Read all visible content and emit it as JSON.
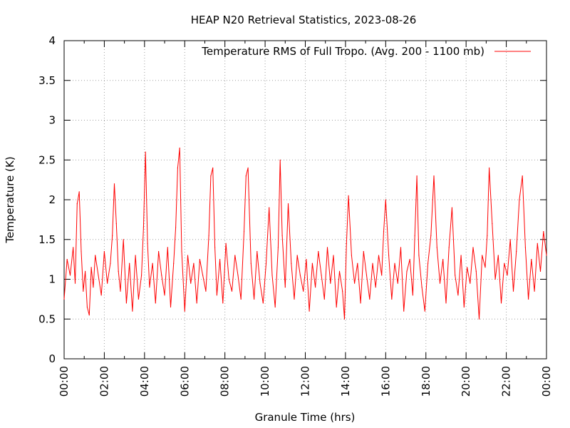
{
  "chart_data": {
    "type": "line",
    "title": "HEAP N20 Retrieval Statistics, 2023-08-26",
    "xlabel": "Granule Time (hrs)",
    "ylabel": "Temperature (K)",
    "xlim": [
      0,
      24
    ],
    "ylim": [
      0,
      4
    ],
    "grid": true,
    "legend_position": "top-right",
    "x_ticks": [
      {
        "value": 0,
        "label": "00:00"
      },
      {
        "value": 2,
        "label": "02:00"
      },
      {
        "value": 4,
        "label": "04:00"
      },
      {
        "value": 6,
        "label": "06:00"
      },
      {
        "value": 8,
        "label": "08:00"
      },
      {
        "value": 10,
        "label": "10:00"
      },
      {
        "value": 12,
        "label": "12:00"
      },
      {
        "value": 14,
        "label": "14:00"
      },
      {
        "value": 16,
        "label": "16:00"
      },
      {
        "value": 18,
        "label": "18:00"
      },
      {
        "value": 20,
        "label": "20:00"
      },
      {
        "value": 22,
        "label": "22:00"
      },
      {
        "value": 24,
        "label": "00:00"
      }
    ],
    "y_ticks": [
      {
        "value": 0,
        "label": "0"
      },
      {
        "value": 0.5,
        "label": "0.5"
      },
      {
        "value": 1,
        "label": "1"
      },
      {
        "value": 1.5,
        "label": "1.5"
      },
      {
        "value": 2,
        "label": "2"
      },
      {
        "value": 2.5,
        "label": "2.5"
      },
      {
        "value": 3,
        "label": "3"
      },
      {
        "value": 3.5,
        "label": "3.5"
      },
      {
        "value": 4,
        "label": "4"
      }
    ],
    "series": [
      {
        "name": "Temperature RMS of Full Tropo. (Avg. 200 - 1100 mb)",
        "color": "#ff0000",
        "x": [
          0.0,
          0.15,
          0.3,
          0.45,
          0.55,
          0.65,
          0.75,
          0.85,
          0.95,
          1.05,
          1.15,
          1.25,
          1.35,
          1.45,
          1.55,
          1.7,
          1.85,
          2.0,
          2.15,
          2.3,
          2.4,
          2.5,
          2.6,
          2.7,
          2.8,
          2.95,
          3.1,
          3.25,
          3.4,
          3.55,
          3.7,
          3.85,
          3.95,
          4.05,
          4.15,
          4.25,
          4.4,
          4.55,
          4.7,
          4.85,
          5.0,
          5.15,
          5.3,
          5.45,
          5.55,
          5.65,
          5.75,
          5.85,
          6.0,
          6.15,
          6.3,
          6.45,
          6.6,
          6.75,
          6.9,
          7.05,
          7.2,
          7.3,
          7.4,
          7.5,
          7.6,
          7.75,
          7.9,
          8.05,
          8.2,
          8.35,
          8.5,
          8.65,
          8.8,
          8.95,
          9.05,
          9.15,
          9.3,
          9.45,
          9.6,
          9.75,
          9.9,
          10.05,
          10.2,
          10.35,
          10.5,
          10.65,
          10.75,
          10.85,
          11.0,
          11.15,
          11.3,
          11.45,
          11.6,
          11.75,
          11.9,
          12.05,
          12.2,
          12.35,
          12.5,
          12.65,
          12.8,
          12.95,
          13.1,
          13.25,
          13.4,
          13.55,
          13.7,
          13.85,
          13.95,
          14.05,
          14.15,
          14.3,
          14.45,
          14.6,
          14.75,
          14.9,
          15.05,
          15.2,
          15.35,
          15.5,
          15.65,
          15.8,
          15.9,
          16.0,
          16.15,
          16.3,
          16.45,
          16.6,
          16.75,
          16.9,
          17.05,
          17.2,
          17.35,
          17.45,
          17.55,
          17.65,
          17.8,
          17.95,
          18.1,
          18.25,
          18.4,
          18.55,
          18.7,
          18.85,
          19.0,
          19.15,
          19.3,
          19.45,
          19.6,
          19.75,
          19.9,
          20.05,
          20.2,
          20.35,
          20.5,
          20.65,
          20.8,
          20.95,
          21.05,
          21.15,
          21.3,
          21.45,
          21.6,
          21.75,
          21.9,
          22.05,
          22.2,
          22.35,
          22.5,
          22.65,
          22.8,
          22.95,
          23.1,
          23.25,
          23.4,
          23.55,
          23.7,
          23.85,
          24.0
        ],
        "y": [
          0.75,
          1.25,
          1.05,
          1.4,
          0.95,
          1.95,
          2.1,
          1.35,
          0.85,
          1.1,
          0.65,
          0.55,
          1.15,
          0.9,
          1.3,
          1.05,
          0.8,
          1.35,
          0.95,
          1.2,
          1.55,
          2.2,
          1.7,
          1.1,
          0.85,
          1.5,
          0.7,
          1.2,
          0.6,
          1.3,
          0.75,
          1.05,
          1.65,
          2.6,
          1.45,
          0.9,
          1.2,
          0.7,
          1.35,
          1.05,
          0.8,
          1.4,
          0.65,
          1.2,
          1.65,
          2.4,
          2.65,
          1.35,
          0.6,
          1.3,
          0.95,
          1.2,
          0.7,
          1.25,
          1.05,
          0.85,
          1.55,
          2.3,
          2.4,
          1.4,
          0.8,
          1.25,
          0.7,
          1.45,
          1.0,
          0.85,
          1.3,
          1.05,
          0.75,
          1.6,
          2.3,
          2.4,
          1.2,
          0.75,
          1.35,
          0.95,
          0.7,
          1.2,
          1.9,
          1.05,
          0.65,
          1.4,
          2.5,
          1.55,
          0.9,
          1.95,
          1.2,
          0.75,
          1.3,
          1.05,
          0.85,
          1.25,
          0.6,
          1.2,
          0.9,
          1.35,
          1.05,
          0.75,
          1.4,
          0.95,
          1.3,
          0.65,
          1.1,
          0.85,
          0.5,
          1.45,
          2.05,
          1.3,
          0.95,
          1.2,
          0.7,
          1.35,
          1.05,
          0.75,
          1.2,
          0.9,
          1.3,
          1.05,
          1.6,
          2.0,
          1.3,
          0.75,
          1.2,
          0.95,
          1.4,
          0.6,
          1.1,
          1.25,
          0.8,
          1.55,
          2.3,
          1.3,
          0.9,
          0.6,
          1.2,
          1.55,
          2.3,
          1.4,
          0.95,
          1.25,
          0.7,
          1.4,
          1.9,
          1.05,
          0.8,
          1.3,
          0.65,
          1.15,
          0.95,
          1.4,
          1.1,
          0.5,
          1.3,
          1.15,
          1.55,
          2.4,
          1.7,
          1.0,
          1.3,
          0.7,
          1.2,
          1.05,
          1.5,
          0.85,
          1.35,
          2.0,
          2.3,
          1.4,
          0.75,
          1.25,
          0.85,
          1.45,
          1.1,
          1.6,
          1.3
        ]
      }
    ]
  }
}
